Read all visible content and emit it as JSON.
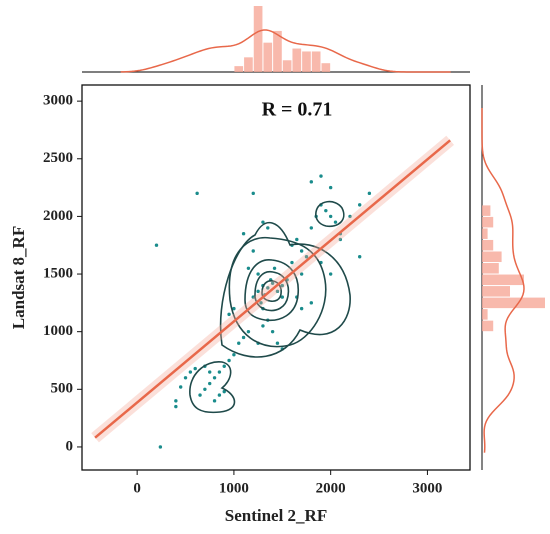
{
  "chart_data": {
    "type": "scatter",
    "annotation": "R = 0.71",
    "x_label": "Sentinel 2_RF",
    "y_label": "Landsat 8_RF",
    "point_color": "#1a8c8c",
    "line_color": "#e8684a",
    "hist_color": "#f6a897",
    "xlim": [
      -570,
      3440
    ],
    "ylim": [
      -200,
      3140
    ],
    "xticks": [
      0,
      1000,
      2000,
      3000
    ],
    "yticks": [
      0,
      500,
      1000,
      1500,
      2000,
      2500,
      3000
    ],
    "x": [
      1200,
      1250,
      1300,
      1350,
      1400,
      1280,
      1320,
      1380,
      1250,
      1300,
      1420,
      1450,
      1500,
      1350,
      1300,
      1150,
      1100,
      1050,
      1000,
      950,
      900,
      850,
      800,
      750,
      700,
      650,
      800,
      850,
      900,
      700,
      750,
      600,
      550,
      500,
      450,
      400,
      1600,
      1650,
      1700,
      1750,
      1800,
      1850,
      1900,
      1950,
      2000,
      2050,
      2100,
      2200,
      2300,
      2400,
      1800,
      1900,
      2000,
      2100,
      1700,
      1600,
      1500,
      1550,
      1200,
      1100,
      1000,
      950,
      1400,
      1450,
      1650,
      2000,
      2300,
      1900,
      1200,
      1300,
      620,
      200,
      240,
      400,
      1700,
      1800,
      1500,
      1250,
      1350,
      1150
    ],
    "values": [
      1300,
      1350,
      1400,
      1380,
      1420,
      1250,
      1320,
      1450,
      1500,
      1200,
      1550,
      1350,
      1300,
      1100,
      1050,
      1000,
      950,
      900,
      800,
      750,
      700,
      650,
      600,
      550,
      500,
      450,
      400,
      450,
      480,
      700,
      650,
      680,
      650,
      600,
      520,
      400,
      1750,
      1800,
      1700,
      1650,
      1900,
      2000,
      2100,
      2050,
      2000,
      1950,
      1850,
      2000,
      2100,
      2200,
      2300,
      2350,
      2250,
      1800,
      1500,
      1600,
      1400,
      1450,
      1700,
      1850,
      1200,
      1150,
      1000,
      900,
      1300,
      1500,
      1650,
      1600,
      2200,
      1950,
      2200,
      1750,
      0,
      350,
      1200,
      1250,
      850,
      900,
      1900,
      1550
    ],
    "regression": {
      "x": [
        -435,
        3235
      ],
      "y": [
        80,
        2660
      ]
    },
    "x_hist": {
      "bins": [
        1000,
        1100,
        1200,
        1300,
        1400,
        1500,
        1600,
        1700,
        1800,
        1900,
        2000
      ],
      "counts": [
        4,
        10,
        45,
        20,
        28,
        8,
        16,
        14,
        14,
        6
      ]
    },
    "y_hist": {
      "bins": [
        1000,
        1100,
        1200,
        1300,
        1400,
        1500,
        1600,
        1700,
        1800,
        1900,
        2000,
        2100
      ],
      "counts": [
        8,
        4,
        45,
        20,
        30,
        12,
        14,
        8,
        4,
        8,
        6
      ]
    }
  }
}
